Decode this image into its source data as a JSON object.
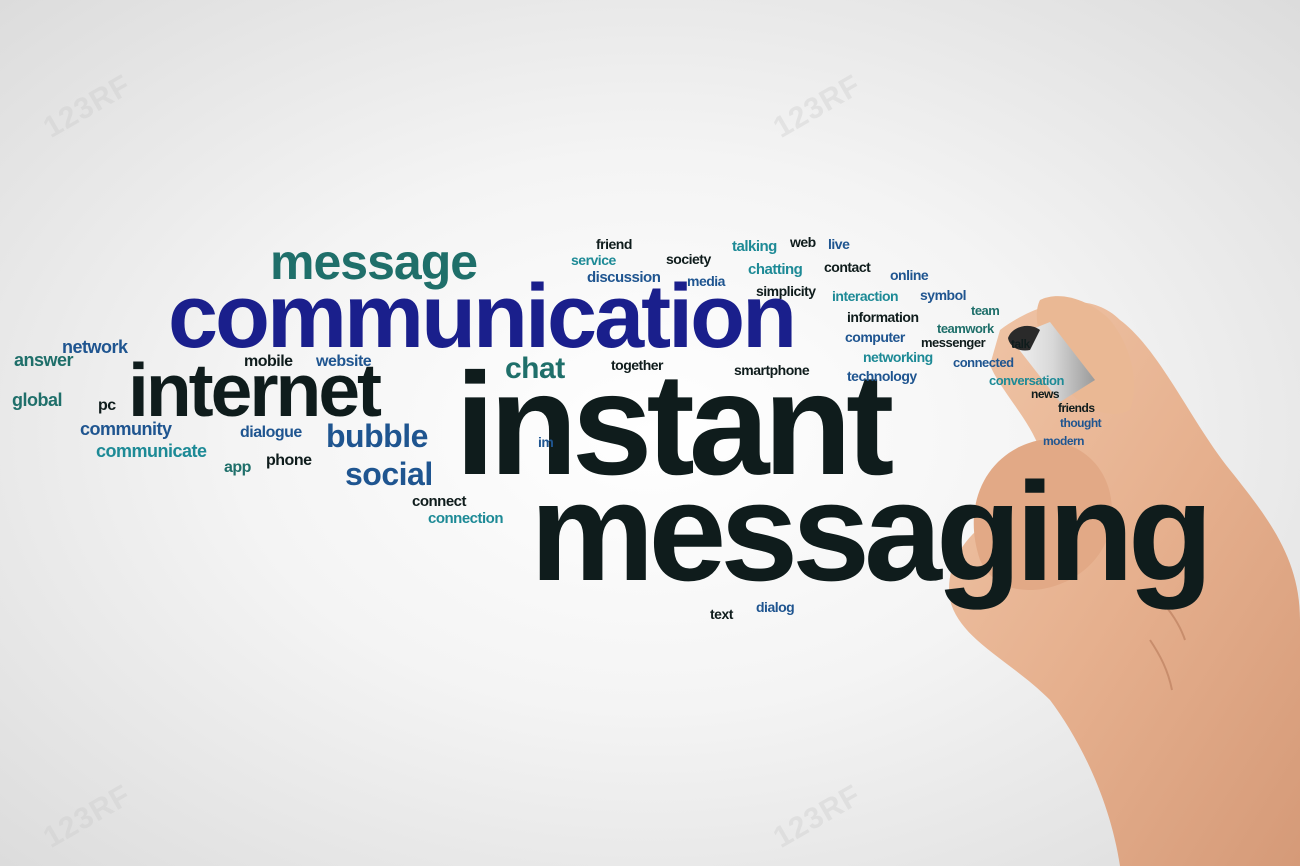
{
  "words": {
    "instant": "instant",
    "messaging": "messaging",
    "communication": "communication",
    "internet": "internet",
    "message": "message",
    "bubble": "bubble",
    "social": "social",
    "chat": "chat",
    "network": "network",
    "answer": "answer",
    "global": "global",
    "pc": "pc",
    "community": "community",
    "communicate": "communicate",
    "app": "app",
    "phone": "phone",
    "mobile": "mobile",
    "website": "website",
    "dialogue": "dialogue",
    "connect": "connect",
    "connection": "connection",
    "im": "im",
    "together": "together",
    "friend": "friend",
    "service": "service",
    "discussion": "discussion",
    "society": "society",
    "media": "media",
    "talking": "talking",
    "web": "web",
    "live": "live",
    "chatting": "chatting",
    "contact": "contact",
    "online": "online",
    "simplicity": "simplicity",
    "interaction": "interaction",
    "symbol": "symbol",
    "information": "information",
    "team": "team",
    "teamwork": "teamwork",
    "computer": "computer",
    "messenger": "messenger",
    "talk": "talk",
    "networking": "networking",
    "connected": "connected",
    "smartphone": "smartphone",
    "technology": "technology",
    "conversation": "conversation",
    "news": "news",
    "friends": "friends",
    "thought": "thought",
    "modern": "modern",
    "text": "text",
    "dialog": "dialog"
  },
  "watermark": "123RF",
  "colors": {
    "dark": "#0f1c1c",
    "teal": "#1f6f6a",
    "blue": "#1f5590",
    "cyan": "#1d8a96",
    "navy": "#1a1f8c",
    "skin": "#e8b896",
    "marker_cap": "#2a2a2a"
  }
}
